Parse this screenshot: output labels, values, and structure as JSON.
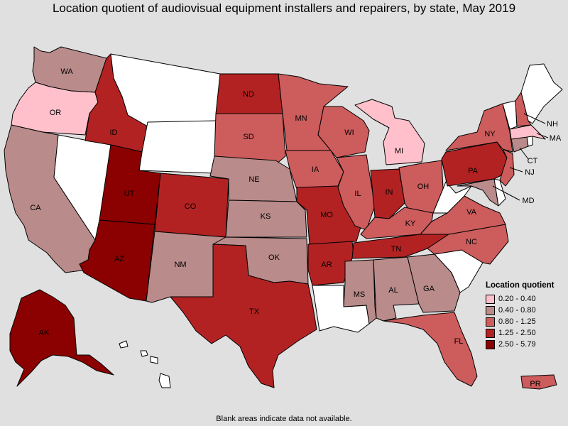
{
  "title": "Location quotient of audiovisual equipment installers and repairers, by state, May 2019",
  "legend": {
    "title": "Location quotient",
    "items": [
      {
        "label": "0.20 - 0.40",
        "color": "#ffc0cb"
      },
      {
        "label": "0.40 - 0.80",
        "color": "#b98b8b"
      },
      {
        "label": "0.80 - 1.25",
        "color": "#cd5c5c"
      },
      {
        "label": "1.25 - 2.50",
        "color": "#b22222"
      },
      {
        "label": "2.50 - 5.79",
        "color": "#8b0000"
      }
    ]
  },
  "footnote": "Blank areas indicate data not available.",
  "colors": {
    "background": "#e0e0e0",
    "no_data": "#ffffff"
  },
  "states": {
    "WA": "0.40 - 0.80",
    "OR": "0.20 - 0.40",
    "CA": "0.40 - 0.80",
    "NV": null,
    "ID": "1.25 - 2.50",
    "MT": null,
    "WY": null,
    "UT": "2.50 - 5.79",
    "AZ": "2.50 - 5.79",
    "CO": "1.25 - 2.50",
    "NM": "0.40 - 0.80",
    "ND": "1.25 - 2.50",
    "SD": "0.80 - 1.25",
    "NE": "0.40 - 0.80",
    "KS": "0.40 - 0.80",
    "OK": "0.40 - 0.80",
    "TX": "1.25 - 2.50",
    "MN": "0.80 - 1.25",
    "IA": "0.80 - 1.25",
    "MO": "1.25 - 2.50",
    "AR": "1.25 - 2.50",
    "LA": null,
    "WI": "0.80 - 1.25",
    "IL": "0.80 - 1.25",
    "MI": "0.20 - 0.40",
    "IN": "1.25 - 2.50",
    "OH": "0.80 - 1.25",
    "KY": "0.80 - 1.25",
    "TN": "1.25 - 2.50",
    "MS": "0.40 - 0.80",
    "AL": "0.40 - 0.80",
    "GA": "0.40 - 0.80",
    "FL": "0.80 - 1.25",
    "SC": null,
    "NC": "0.80 - 1.25",
    "VA": "0.80 - 1.25",
    "WV": null,
    "MD": "0.40 - 0.80",
    "DE": null,
    "PA": "1.25 - 2.50",
    "NJ": "0.80 - 1.25",
    "NY": "0.80 - 1.25",
    "CT": "0.40 - 0.80",
    "RI": null,
    "MA": "0.20 - 0.40",
    "VT": null,
    "NH": "0.80 - 1.25",
    "ME": null,
    "AK": "2.50 - 5.79",
    "HI": null,
    "PR": "0.80 - 1.25"
  },
  "labels": {
    "WA": "WA",
    "OR": "OR",
    "CA": "CA",
    "ID": "ID",
    "UT": "UT",
    "AZ": "AZ",
    "CO": "CO",
    "NM": "NM",
    "ND": "ND",
    "SD": "SD",
    "NE": "NE",
    "KS": "KS",
    "OK": "OK",
    "TX": "TX",
    "MN": "MN",
    "IA": "IA",
    "MO": "MO",
    "AR": "AR",
    "WI": "WI",
    "IL": "IL",
    "MI": "MI",
    "IN": "IN",
    "OH": "OH",
    "KY": "KY",
    "TN": "TN",
    "MS": "MS",
    "AL": "AL",
    "GA": "GA",
    "FL": "FL",
    "NC": "NC",
    "VA": "VA",
    "PA": "PA",
    "NY": "NY",
    "NH": "NH",
    "MA": "MA",
    "CT": "CT",
    "NJ": "NJ",
    "MD": "MD",
    "AK": "AK",
    "PR": "PR"
  }
}
